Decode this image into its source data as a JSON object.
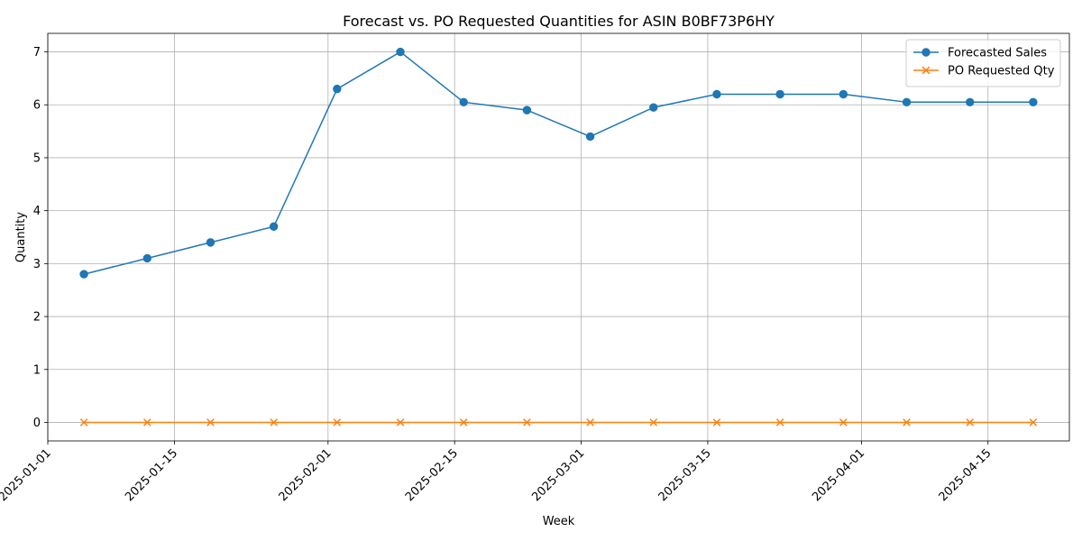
{
  "chart_data": {
    "type": "line",
    "title": "Forecast vs. PO Requested Quantities for ASIN B0BF73P6HY",
    "xlabel": "Week",
    "ylabel": "Quantity",
    "x": [
      "2025-01-05",
      "2025-01-12",
      "2025-01-19",
      "2025-01-26",
      "2025-02-02",
      "2025-02-09",
      "2025-02-16",
      "2025-02-23",
      "2025-03-02",
      "2025-03-09",
      "2025-03-16",
      "2025-03-23",
      "2025-03-30",
      "2025-04-06",
      "2025-04-13",
      "2025-04-20"
    ],
    "series": [
      {
        "name": "Forecasted Sales",
        "color": "#1f77b4",
        "marker": "circle",
        "values": [
          2.8,
          3.1,
          3.4,
          3.7,
          6.3,
          7.0,
          6.05,
          5.9,
          5.4,
          5.95,
          6.2,
          6.2,
          6.2,
          6.05,
          6.05,
          6.05
        ]
      },
      {
        "name": "PO Requested Qty",
        "color": "#ff7f0e",
        "marker": "x",
        "values": [
          0,
          0,
          0,
          0,
          0,
          0,
          0,
          0,
          0,
          0,
          0,
          0,
          0,
          0,
          0,
          0
        ]
      }
    ],
    "xlim": [
      "2025-01-01",
      "2025-04-24"
    ],
    "ylim": [
      -0.35,
      7.35
    ],
    "x_ticks": [
      "2025-01-01",
      "2025-01-15",
      "2025-02-01",
      "2025-02-15",
      "2025-03-01",
      "2025-03-15",
      "2025-04-01",
      "2025-04-15"
    ],
    "y_ticks": [
      0,
      1,
      2,
      3,
      4,
      5,
      6,
      7
    ],
    "grid": true,
    "legend_position": "top-right"
  }
}
